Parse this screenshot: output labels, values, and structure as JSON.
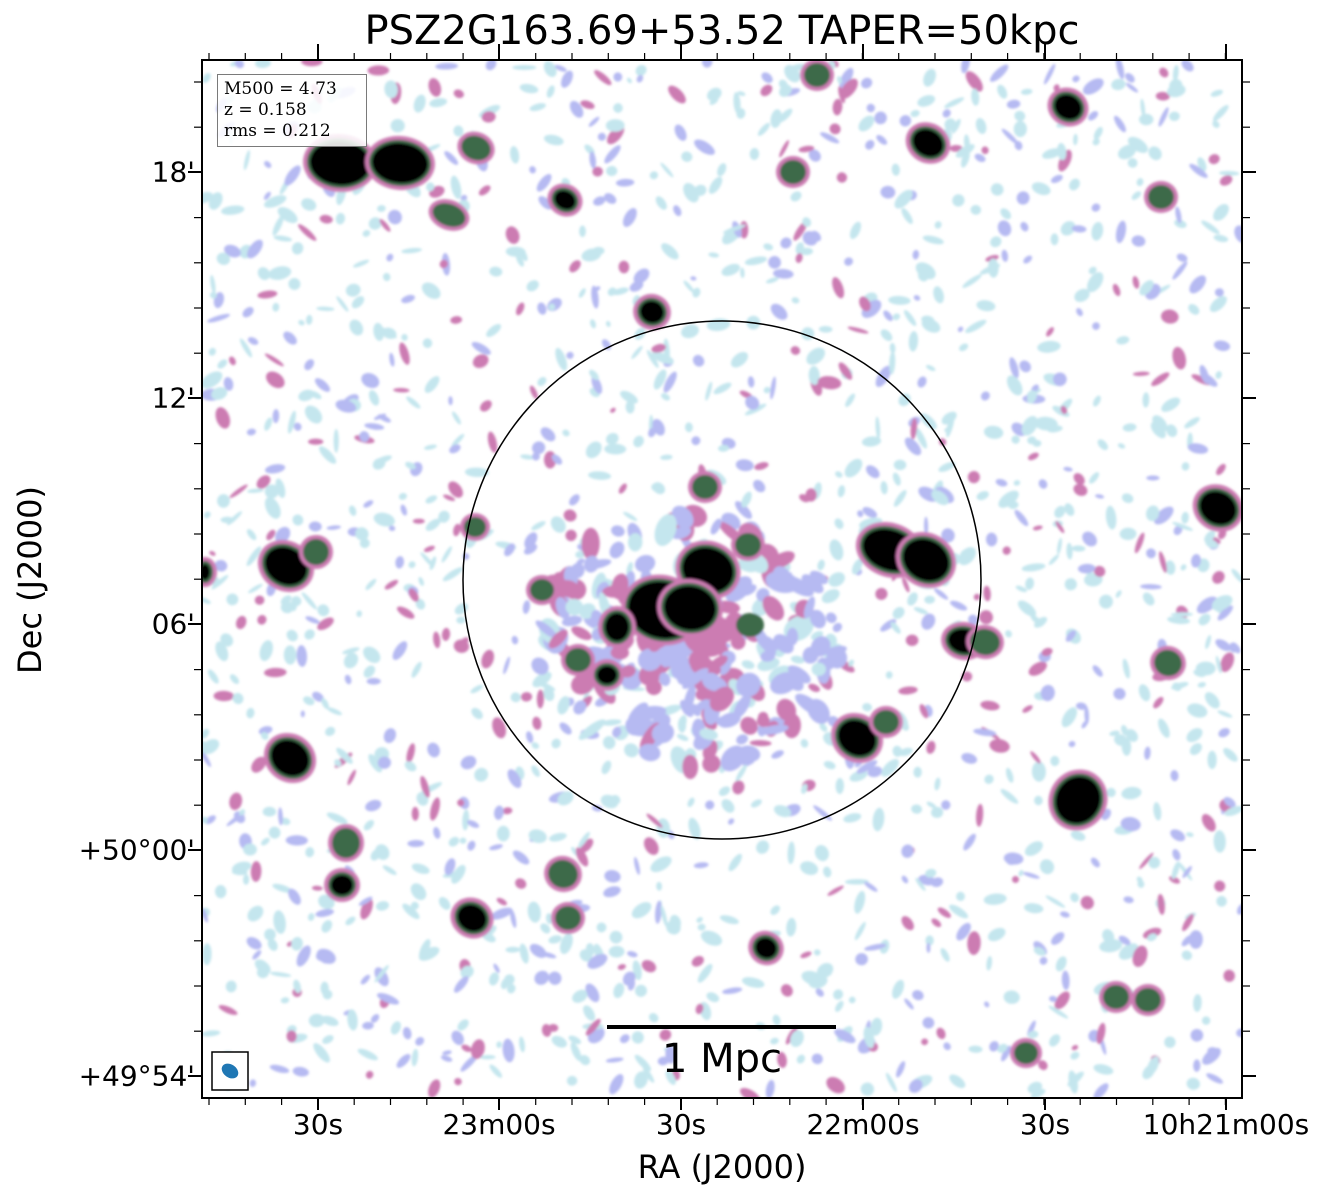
{
  "title": "PSZ2G163.69+53.52 TAPER=50kpc",
  "info_box": {
    "mass": "M500 = 4.73",
    "redshift": "z = 0.158",
    "rms": "rms = 0.212"
  },
  "axes": {
    "xlabel": "RA (J2000)",
    "ylabel": "Dec (J2000)",
    "xticks": [
      "30s",
      "23m00s",
      "30s",
      "22m00s",
      "30s",
      "10h21m00s"
    ],
    "yticks": [
      "18'",
      "12'",
      "06'",
      "+50°00'",
      "+49°54'"
    ]
  },
  "scale_bar": {
    "label": "1 Mpc"
  },
  "colors": {
    "faint": "#c4e6ee",
    "low": "#b6baf2",
    "mid": "#cc7bb2",
    "high": "#3c6a48",
    "core": "#000000"
  },
  "icons": [
    "beam-ellipse-icon"
  ]
}
